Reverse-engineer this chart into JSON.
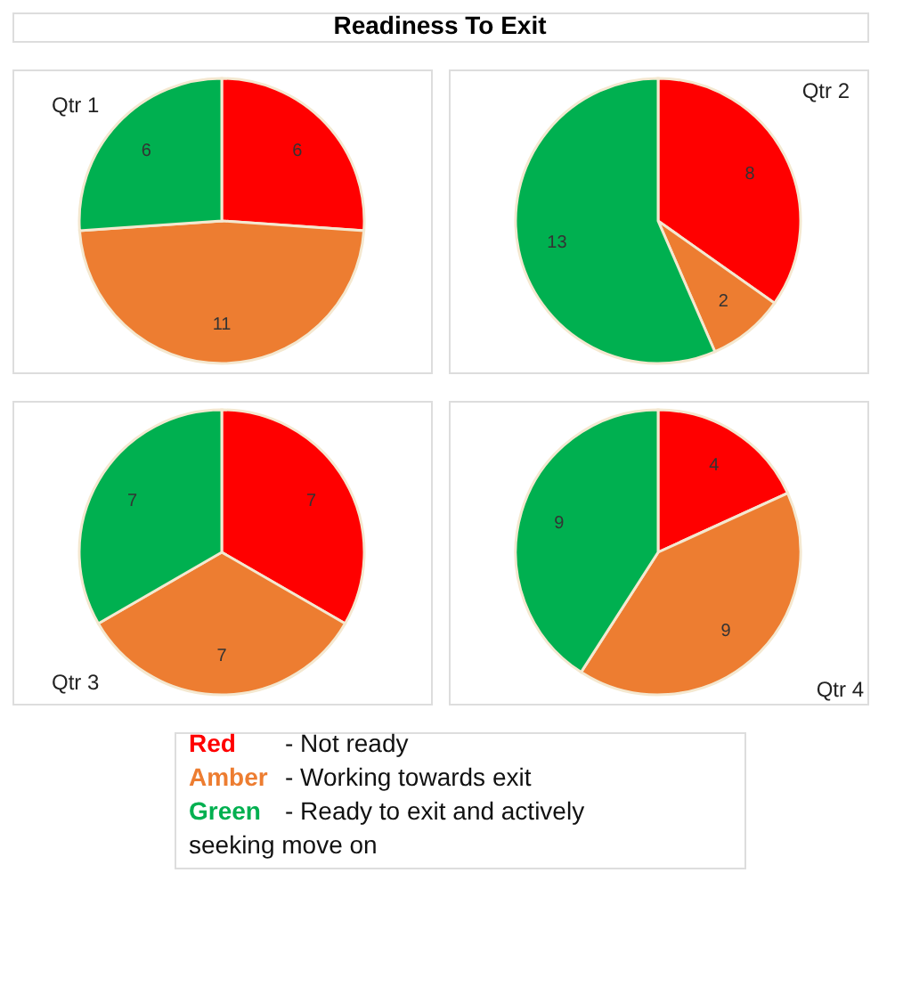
{
  "chart_data": [
    {
      "type": "other",
      "title": "Readiness To Exit"
    },
    {
      "type": "pie",
      "title": "Qtr 1",
      "categories": [
        null,
        null,
        null
      ],
      "values": [
        6,
        11,
        6
      ],
      "colors": [
        "#ff0000",
        "#ed7d31",
        "#00b050"
      ],
      "data_labels": true
    },
    {
      "type": "pie",
      "title": "Qtr 2",
      "categories": [
        null,
        null,
        null
      ],
      "values": [
        8,
        2,
        13
      ],
      "colors": [
        "#ff0000",
        "#ed7d31",
        "#00b050"
      ],
      "data_labels": true
    },
    {
      "type": "pie",
      "title": "Qtr 3",
      "categories": [
        null,
        null,
        null
      ],
      "values": [
        7,
        7,
        7
      ],
      "colors": [
        "#ff0000",
        "#ed7d31",
        "#00b050"
      ],
      "data_labels": true
    },
    {
      "type": "pie",
      "title": "Qtr 4",
      "categories": [
        null,
        null,
        null
      ],
      "values": [
        4,
        9,
        9
      ],
      "colors": [
        "#ff0000",
        "#ed7d31",
        "#00b050"
      ],
      "data_labels": true
    },
    {
      "type": "other",
      "colors": [
        "#ff0000",
        "#ed7d31",
        "#00b050"
      ],
      "annotations": [
        "Red - Not ready",
        "Amber - Working towards exit",
        "Green - Ready to exit and actively seeking move on"
      ]
    }
  ]
}
